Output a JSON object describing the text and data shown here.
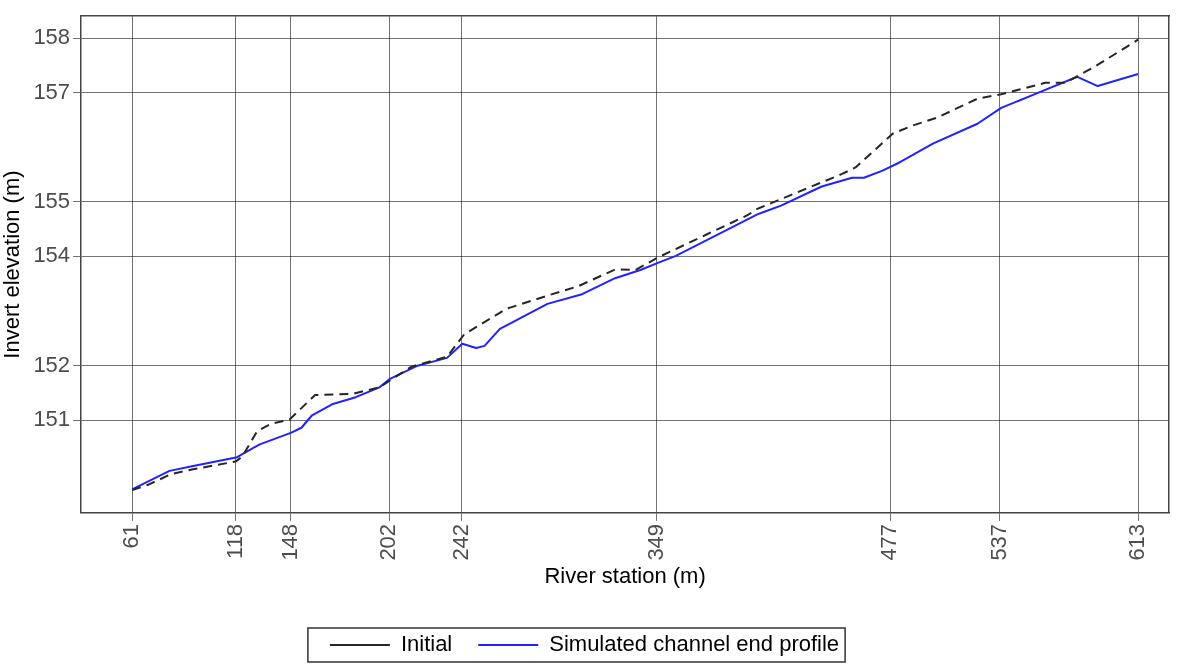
{
  "chart_data": {
    "type": "line",
    "xlabel": "River station (m)",
    "ylabel": "Invert elevation (m)",
    "xlim": [
      33,
      630
    ],
    "ylim": [
      149.3,
      158.4
    ],
    "xticks": [
      61,
      118,
      148,
      202,
      242,
      349,
      477,
      537,
      613
    ],
    "yticks": [
      151,
      152,
      154,
      155,
      157,
      158
    ],
    "grid": true,
    "legend": "bottom",
    "marker": "none",
    "series": [
      {
        "name": "Initial",
        "color": "#262626",
        "line_style": "dashed",
        "x": [
          61,
          69.4,
          82.4,
          94.5,
          117.7,
          121.4,
          129.7,
          137.2,
          147.4,
          161.4,
          181.8,
          196.7,
          214.3,
          233.8,
          243.2,
          266.4,
          288.9,
          305.6,
          326,
          337.2,
          350.2,
          376.2,
          398.5,
          404.1,
          420.8,
          450.6,
          458,
          478.5,
          489.6,
          502.6,
          524.9,
          537.9,
          562.1,
          573.2,
          590,
          613
        ],
        "values": [
          149.72,
          149.81,
          150.01,
          150.1,
          150.24,
          150.33,
          150.8,
          150.93,
          151.01,
          151.46,
          151.48,
          151.6,
          151.98,
          152.16,
          152.57,
          153.04,
          153.28,
          153.45,
          153.76,
          153.75,
          153.99,
          154.4,
          154.75,
          154.87,
          155.1,
          155.51,
          155.63,
          156.25,
          156.4,
          156.54,
          156.89,
          156.97,
          157.18,
          157.18,
          157.49,
          157.97
        ]
      },
      {
        "name": "Simulated channel end profile",
        "color": "#2222ff",
        "line_style": "solid",
        "x": [
          61,
          81.5,
          94.5,
          118.6,
          130.7,
          148.4,
          153.9,
          159.5,
          170.7,
          183.7,
          196.7,
          202.2,
          217.1,
          233.8,
          242.2,
          249.8,
          254.4,
          262.8,
          288.9,
          307.4,
          326,
          339.9,
          350.2,
          359.4,
          404.1,
          417.1,
          439.4,
          456.1,
          462.6,
          472.8,
          482.1,
          500.7,
          524.9,
          537.9,
          558.4,
          579.7,
          590.9,
          613
        ],
        "values": [
          149.73,
          150.07,
          150.16,
          150.32,
          150.55,
          150.77,
          150.86,
          151.08,
          151.29,
          151.42,
          151.6,
          151.75,
          151.99,
          152.14,
          152.4,
          152.32,
          152.36,
          152.67,
          153.13,
          153.3,
          153.6,
          153.75,
          153.89,
          154.01,
          154.77,
          154.93,
          155.28,
          155.44,
          155.44,
          155.57,
          155.72,
          156.07,
          156.43,
          156.72,
          157,
          157.29,
          157.12,
          157.34
        ]
      }
    ]
  }
}
